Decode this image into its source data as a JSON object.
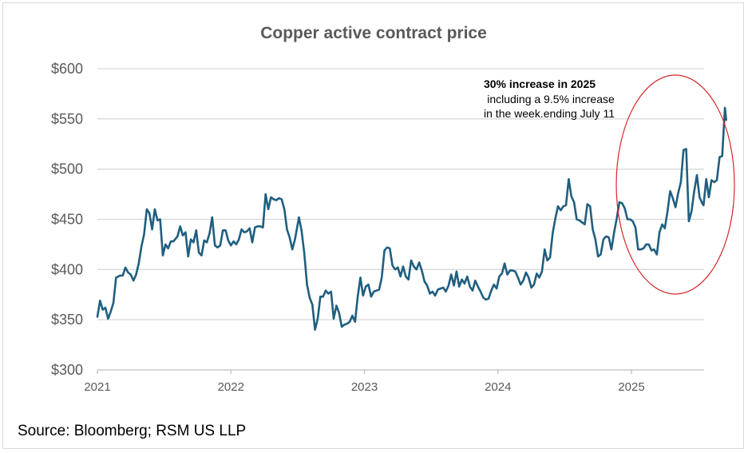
{
  "chart_data": {
    "type": "line",
    "title": "Copper active contract price",
    "xlabel": "",
    "ylabel": "",
    "ylim": [
      300,
      600
    ],
    "y_ticks": [
      "$300",
      "$350",
      "$400",
      "$450",
      "$500",
      "$550",
      "$600"
    ],
    "y_tick_values": [
      300,
      350,
      400,
      450,
      500,
      550,
      600
    ],
    "x_ticks": [
      "2021",
      "2022",
      "2023",
      "2024",
      "2025"
    ],
    "x_tick_values": [
      2021,
      2022,
      2023,
      2024,
      2025
    ],
    "xlim": [
      2021,
      2025.54
    ],
    "grid": true,
    "colors": {
      "line": "#1f5f7f",
      "grid": "#d9d9d9",
      "axis": "#bfbfbf",
      "highlight": "#d62728"
    },
    "series": [
      {
        "name": "Copper active contract price",
        "points": [
          [
            2021.0,
            353
          ],
          [
            2021.02,
            369
          ],
          [
            2021.04,
            360
          ],
          [
            2021.06,
            362
          ],
          [
            2021.08,
            351
          ],
          [
            2021.1,
            358
          ],
          [
            2021.12,
            367
          ],
          [
            2021.14,
            392
          ],
          [
            2021.17,
            394
          ],
          [
            2021.19,
            394
          ],
          [
            2021.21,
            402
          ],
          [
            2021.23,
            397
          ],
          [
            2021.25,
            395
          ],
          [
            2021.27,
            389
          ],
          [
            2021.29,
            395
          ],
          [
            2021.31,
            406
          ],
          [
            2021.33,
            423
          ],
          [
            2021.35,
            435
          ],
          [
            2021.37,
            460
          ],
          [
            2021.39,
            456
          ],
          [
            2021.41,
            440
          ],
          [
            2021.43,
            460
          ],
          [
            2021.45,
            449
          ],
          [
            2021.47,
            450
          ],
          [
            2021.49,
            414
          ],
          [
            2021.51,
            425
          ],
          [
            2021.53,
            421
          ],
          [
            2021.55,
            428
          ],
          [
            2021.57,
            428
          ],
          [
            2021.6,
            433
          ],
          [
            2021.62,
            443
          ],
          [
            2021.64,
            434
          ],
          [
            2021.66,
            437
          ],
          [
            2021.68,
            413
          ],
          [
            2021.7,
            430
          ],
          [
            2021.72,
            427
          ],
          [
            2021.74,
            439
          ],
          [
            2021.76,
            417
          ],
          [
            2021.78,
            414
          ],
          [
            2021.8,
            429
          ],
          [
            2021.82,
            427
          ],
          [
            2021.84,
            436
          ],
          [
            2021.86,
            452
          ],
          [
            2021.88,
            424
          ],
          [
            2021.9,
            422
          ],
          [
            2021.92,
            424
          ],
          [
            2021.94,
            439
          ],
          [
            2021.96,
            439
          ],
          [
            2021.98,
            429
          ],
          [
            2022.0,
            424
          ],
          [
            2022.02,
            428
          ],
          [
            2022.04,
            425
          ],
          [
            2022.06,
            430
          ],
          [
            2022.08,
            440
          ],
          [
            2022.1,
            437
          ],
          [
            2022.12,
            438
          ],
          [
            2022.14,
            441
          ],
          [
            2022.16,
            427
          ],
          [
            2022.18,
            442
          ],
          [
            2022.2,
            443
          ],
          [
            2022.22,
            443
          ],
          [
            2022.24,
            442
          ],
          [
            2022.26,
            475
          ],
          [
            2022.28,
            460
          ],
          [
            2022.3,
            472
          ],
          [
            2022.32,
            470
          ],
          [
            2022.34,
            469
          ],
          [
            2022.36,
            471
          ],
          [
            2022.38,
            470
          ],
          [
            2022.4,
            460
          ],
          [
            2022.42,
            440
          ],
          [
            2022.44,
            432
          ],
          [
            2022.46,
            420
          ],
          [
            2022.48,
            430
          ],
          [
            2022.51,
            452
          ],
          [
            2022.53,
            438
          ],
          [
            2022.55,
            416
          ],
          [
            2022.57,
            385
          ],
          [
            2022.59,
            372
          ],
          [
            2022.61,
            365
          ],
          [
            2022.63,
            340
          ],
          [
            2022.65,
            351
          ],
          [
            2022.67,
            373
          ],
          [
            2022.69,
            373
          ],
          [
            2022.71,
            379
          ],
          [
            2022.73,
            376
          ],
          [
            2022.75,
            378
          ],
          [
            2022.77,
            351
          ],
          [
            2022.79,
            364
          ],
          [
            2022.81,
            357
          ],
          [
            2022.83,
            343
          ],
          [
            2022.85,
            345
          ],
          [
            2022.87,
            346
          ],
          [
            2022.89,
            348
          ],
          [
            2022.91,
            354
          ],
          [
            2022.93,
            348
          ],
          [
            2022.95,
            373
          ],
          [
            2022.97,
            392
          ],
          [
            2022.99,
            374
          ],
          [
            2023.01,
            383
          ],
          [
            2023.03,
            385
          ],
          [
            2023.05,
            373
          ],
          [
            2023.07,
            378
          ],
          [
            2023.09,
            379
          ],
          [
            2023.11,
            380
          ],
          [
            2023.13,
            392
          ],
          [
            2023.15,
            419
          ],
          [
            2023.17,
            422
          ],
          [
            2023.19,
            421
          ],
          [
            2023.21,
            404
          ],
          [
            2023.23,
            400
          ],
          [
            2023.25,
            402
          ],
          [
            2023.27,
            393
          ],
          [
            2023.29,
            403
          ],
          [
            2023.31,
            393
          ],
          [
            2023.33,
            390
          ],
          [
            2023.35,
            409
          ],
          [
            2023.37,
            403
          ],
          [
            2023.39,
            400
          ],
          [
            2023.41,
            407
          ],
          [
            2023.43,
            399
          ],
          [
            2023.45,
            388
          ],
          [
            2023.47,
            384
          ],
          [
            2023.49,
            376
          ],
          [
            2023.51,
            378
          ],
          [
            2023.53,
            374
          ],
          [
            2023.55,
            380
          ],
          [
            2023.57,
            381
          ],
          [
            2023.59,
            382
          ],
          [
            2023.61,
            378
          ],
          [
            2023.63,
            384
          ],
          [
            2023.65,
            395
          ],
          [
            2023.67,
            384
          ],
          [
            2023.69,
            398
          ],
          [
            2023.71,
            383
          ],
          [
            2023.73,
            390
          ],
          [
            2023.75,
            386
          ],
          [
            2023.77,
            393
          ],
          [
            2023.79,
            383
          ],
          [
            2023.81,
            379
          ],
          [
            2023.83,
            389
          ],
          [
            2023.85,
            383
          ],
          [
            2023.87,
            378
          ],
          [
            2023.89,
            372
          ],
          [
            2023.91,
            370
          ],
          [
            2023.93,
            371
          ],
          [
            2023.95,
            379
          ],
          [
            2023.97,
            385
          ],
          [
            2023.99,
            381
          ],
          [
            2024.01,
            393
          ],
          [
            2024.03,
            396
          ],
          [
            2024.05,
            406
          ],
          [
            2024.07,
            395
          ],
          [
            2024.09,
            399
          ],
          [
            2024.11,
            399
          ],
          [
            2024.13,
            398
          ],
          [
            2024.15,
            392
          ],
          [
            2024.17,
            385
          ],
          [
            2024.19,
            389
          ],
          [
            2024.21,
            397
          ],
          [
            2024.23,
            392
          ],
          [
            2024.25,
            382
          ],
          [
            2024.27,
            385
          ],
          [
            2024.29,
            396
          ],
          [
            2024.31,
            392
          ],
          [
            2024.33,
            398
          ],
          [
            2024.35,
            420
          ],
          [
            2024.37,
            409
          ],
          [
            2024.39,
            412
          ],
          [
            2024.41,
            436
          ],
          [
            2024.43,
            451
          ],
          [
            2024.45,
            463
          ],
          [
            2024.47,
            459
          ],
          [
            2024.49,
            463
          ],
          [
            2024.51,
            464
          ],
          [
            2024.53,
            490
          ],
          [
            2024.55,
            473
          ],
          [
            2024.57,
            467
          ],
          [
            2024.59,
            450
          ],
          [
            2024.61,
            449
          ],
          [
            2024.63,
            447
          ],
          [
            2024.65,
            445
          ],
          [
            2024.67,
            465
          ],
          [
            2024.69,
            463
          ],
          [
            2024.71,
            440
          ],
          [
            2024.73,
            430
          ],
          [
            2024.75,
            413
          ],
          [
            2024.77,
            415
          ],
          [
            2024.79,
            430
          ],
          [
            2024.81,
            433
          ],
          [
            2024.83,
            432
          ],
          [
            2024.85,
            420
          ],
          [
            2024.87,
            437
          ],
          [
            2024.89,
            451
          ],
          [
            2024.91,
            467
          ],
          [
            2024.93,
            466
          ],
          [
            2024.95,
            461
          ],
          [
            2024.97,
            450
          ],
          [
            2024.99,
            450
          ],
          [
            2025.01,
            448
          ],
          [
            2025.03,
            442
          ],
          [
            2025.05,
            420
          ],
          [
            2025.07,
            420
          ],
          [
            2025.09,
            421
          ],
          [
            2025.11,
            425
          ],
          [
            2025.13,
            425
          ],
          [
            2025.15,
            419
          ],
          [
            2025.17,
            420
          ],
          [
            2025.19,
            415
          ],
          [
            2025.21,
            437
          ],
          [
            2025.23,
            445
          ],
          [
            2025.25,
            441
          ],
          [
            2025.27,
            458
          ],
          [
            2025.29,
            478
          ],
          [
            2025.31,
            471
          ],
          [
            2025.33,
            462
          ],
          [
            2025.35,
            476
          ],
          [
            2025.37,
            487
          ],
          [
            2025.39,
            519
          ],
          [
            2025.41,
            520
          ],
          [
            2025.43,
            448
          ],
          [
            2025.45,
            458
          ],
          [
            2025.47,
            478
          ],
          [
            2025.49,
            494
          ],
          [
            2025.51,
            472
          ],
          [
            2025.53,
            466
          ],
          [
            2025.54,
            464
          ],
          [
            2025.56,
            490
          ],
          [
            2025.58,
            472
          ],
          [
            2025.6,
            489
          ],
          [
            2025.62,
            487
          ],
          [
            2025.64,
            489
          ],
          [
            2025.66,
            512
          ],
          [
            2025.68,
            513
          ],
          [
            2025.7,
            561
          ],
          [
            2025.71,
            549
          ]
        ]
      }
    ],
    "annotations": [
      {
        "text": "30% increase in 2025",
        "bold": true
      },
      {
        "text": "including a 9.5% increase",
        "bold": false
      },
      {
        "text": "in the week.ending July 11",
        "bold": false
      }
    ]
  },
  "source": "Source: Bloomberg; RSM US LLP"
}
